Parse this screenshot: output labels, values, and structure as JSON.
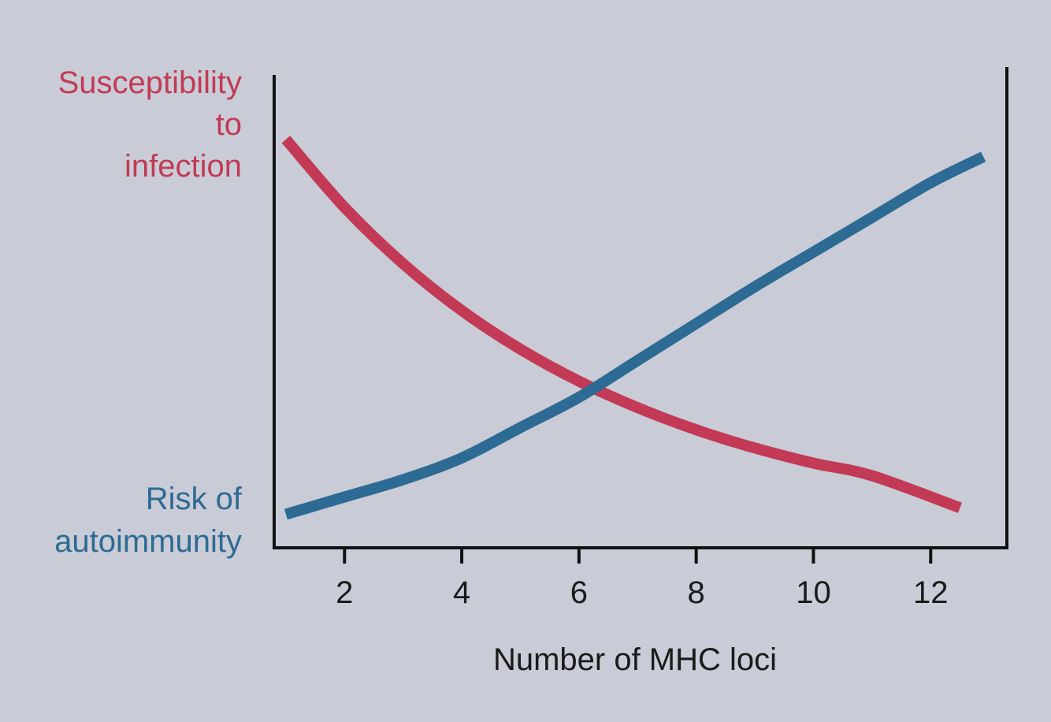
{
  "chart_data": {
    "type": "line",
    "title": "",
    "xlabel": "Number of MHC loci",
    "xlim": [
      0.8,
      13.3
    ],
    "ylim": [
      0,
      100
    ],
    "xticks": [
      2,
      4,
      6,
      8,
      10,
      12
    ],
    "yticks": [],
    "grid": false,
    "y_axis_labels": {
      "top": {
        "lines": [
          "Susceptibility",
          "to",
          "infection"
        ],
        "color": "#c23a55"
      },
      "bottom": {
        "lines": [
          "Risk of",
          "autoimmunity"
        ],
        "color": "#2d6a94"
      }
    },
    "series": [
      {
        "name": "Susceptibility to infection",
        "color": "#c23a55",
        "x": [
          1,
          2,
          3,
          4,
          5,
          6,
          7,
          8,
          9,
          10,
          11,
          12.5
        ],
        "y": [
          91.5,
          75.8,
          62.8,
          52.0,
          43.1,
          35.7,
          29.6,
          24.5,
          20.3,
          16.8,
          13.9,
          6.5
        ]
      },
      {
        "name": "Risk of autoimmunity",
        "color": "#2d6a94",
        "x": [
          1,
          2,
          3,
          4,
          5,
          6,
          7,
          8,
          9,
          10,
          11,
          12,
          12.9
        ],
        "y": [
          5.0,
          9.0,
          13.0,
          18.0,
          25.0,
          32.0,
          40.5,
          49.0,
          57.5,
          65.5,
          73.5,
          81.5,
          87.5
        ]
      }
    ]
  }
}
